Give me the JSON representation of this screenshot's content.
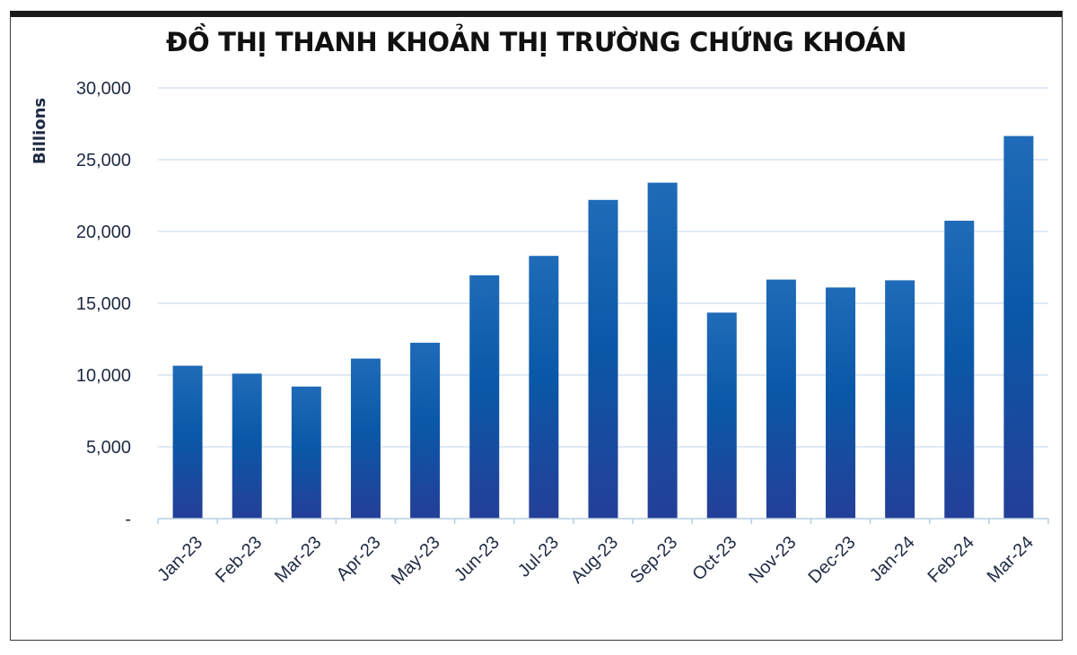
{
  "chart_data": {
    "type": "bar",
    "title": "ĐỒ THỊ THANH KHOẢN THỊ TRƯỜNG CHỨNG KHOÁN",
    "xlabel": "",
    "ylabel": "Billions",
    "ylim": [
      0,
      30000
    ],
    "yticks": [
      0,
      5000,
      10000,
      15000,
      20000,
      25000,
      30000
    ],
    "ytick_labels": [
      "-",
      "5,000",
      "10,000",
      "15,000",
      "20,000",
      "25,000",
      "30,000"
    ],
    "categories": [
      "Jan-23",
      "Feb-23",
      "Mar-23",
      "Apr-23",
      "May-23",
      "Jun-23",
      "Jul-23",
      "Aug-23",
      "Sep-23",
      "Oct-23",
      "Nov-23",
      "Dec-23",
      "Jan-24",
      "Feb-24",
      "Mar-24"
    ],
    "values": [
      10650,
      10100,
      9200,
      11150,
      12250,
      16950,
      18300,
      22200,
      23400,
      14350,
      16650,
      16100,
      16600,
      20750,
      26650
    ],
    "grid": true,
    "legend": "none",
    "bar_color_top": "#1f6bb8",
    "bar_color_mid": "#0a58a8",
    "bar_color_bottom": "#243f97",
    "grid_color": "#d6e4f0",
    "axis_color": "#b8cde0"
  }
}
